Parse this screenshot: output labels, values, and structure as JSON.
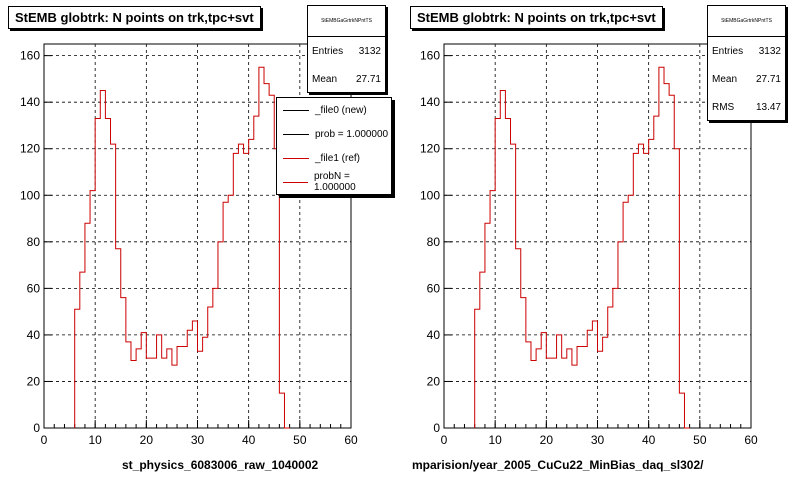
{
  "colors": {
    "ref_line": "#cc0000",
    "new_line": "#000000",
    "grid": "#000000"
  },
  "panels": [
    {
      "title": "StEMB globtrk: N points on trk,tpc+svt",
      "stats": {
        "name": "StEMBGaGrtrkNPntTS",
        "rows": [
          {
            "label": "Entries",
            "value": "3132"
          },
          {
            "label": "Mean",
            "value": "27.71"
          }
        ]
      },
      "legend": [
        {
          "label": "_file0 (new)",
          "color": "#000000"
        },
        {
          "label": "prob = 1.000000",
          "color": "#000000"
        },
        {
          "label": "_file1 (ref)",
          "color": "#cc0000"
        },
        {
          "label": "probN = 1.000000",
          "color": "#cc0000"
        }
      ],
      "filename": "st_physics_6083006_raw_1040002"
    },
    {
      "title": "StEMB globtrk: N points on trk,tpc+svt",
      "stats": {
        "name": "StEMBGaGrtrkNPntTS",
        "rows": [
          {
            "label": "Entries",
            "value": "3132"
          },
          {
            "label": "Mean",
            "value": "27.71"
          },
          {
            "label": "RMS",
            "value": "13.47"
          }
        ]
      },
      "filename": "mparision/year_2005_CuCu22_MinBias_daq_sl302/"
    }
  ],
  "chart_data": [
    {
      "type": "histogram",
      "xlim": [
        0,
        60
      ],
      "ylim": [
        0,
        165
      ],
      "xticks": [
        "0",
        "10",
        "20",
        "30",
        "40",
        "50",
        "60"
      ],
      "yticks": [
        "0",
        "20",
        "40",
        "60",
        "80",
        "100",
        "120",
        "140",
        "160"
      ],
      "grid": true,
      "bin_width": 1,
      "x_start": 6,
      "series": [
        {
          "name": "_file1 (ref)",
          "values": [
            51,
            67,
            88,
            102,
            133,
            145,
            133,
            122,
            77,
            56,
            37,
            29,
            34,
            41,
            30,
            30,
            40,
            30,
            34,
            27,
            35,
            35,
            42,
            46,
            33,
            39,
            52,
            60,
            80,
            97,
            100,
            118,
            122,
            118,
            124,
            134,
            155,
            148,
            143,
            120,
            15,
            0
          ]
        }
      ]
    },
    {
      "type": "histogram",
      "xlim": [
        0,
        60
      ],
      "ylim": [
        0,
        165
      ],
      "xticks": [
        "0",
        "10",
        "20",
        "30",
        "40",
        "50",
        "60"
      ],
      "yticks": [
        "0",
        "20",
        "40",
        "60",
        "80",
        "100",
        "120",
        "140",
        "160"
      ],
      "grid": true,
      "bin_width": 1,
      "x_start": 6,
      "series": [
        {
          "name": "_file1 (ref)",
          "values": [
            51,
            67,
            88,
            102,
            133,
            145,
            133,
            122,
            77,
            56,
            37,
            29,
            34,
            41,
            30,
            30,
            40,
            30,
            34,
            27,
            35,
            35,
            42,
            46,
            33,
            39,
            52,
            60,
            80,
            97,
            100,
            118,
            122,
            118,
            124,
            134,
            155,
            148,
            143,
            120,
            15,
            0
          ]
        }
      ]
    }
  ]
}
